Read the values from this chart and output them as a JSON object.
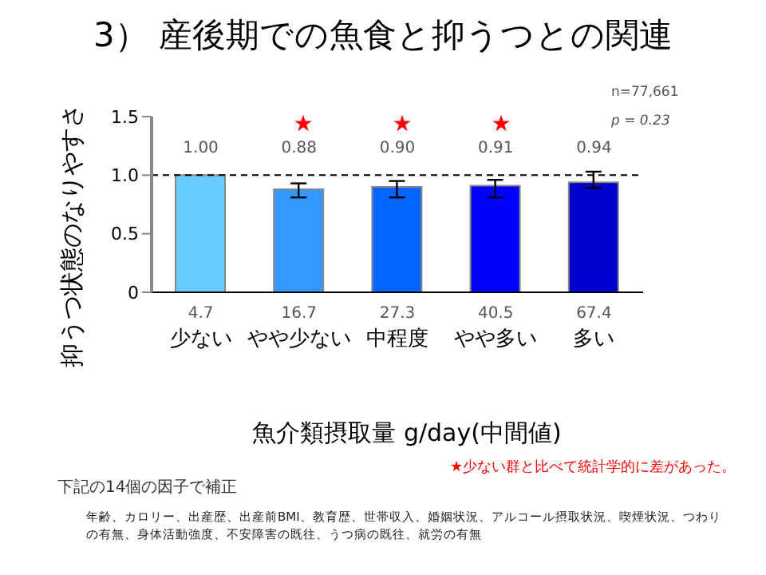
{
  "chart_data": {
    "type": "bar",
    "title": "3） 産後期での魚食と抑うつとの関連",
    "categories": [
      "4.7\n少ない",
      "16.7\nやや少ない",
      "27.3\n中程度",
      "40.5\nやや多い",
      "67.4\n多い"
    ],
    "values": [
      1.0,
      0.88,
      0.9,
      0.91,
      0.94
    ],
    "colors": [
      "#66ccff",
      "#3399ff",
      "#0066ff",
      "#0000ff",
      "#0000cc"
    ],
    "errors": [
      null,
      [
        0.81,
        0.93
      ],
      [
        0.81,
        0.95
      ],
      [
        0.81,
        0.96
      ],
      [
        0.89,
        1.03
      ]
    ],
    "value_labels": [
      "1.00",
      "0.88",
      "0.90",
      "0.91",
      "0.94"
    ],
    "xlabel": "魚介類摂取量 g/day(中間値)",
    "ylabel": "抑うつ状態のなりやすさ",
    "ylim": [
      0,
      1.5
    ],
    "yticks": [
      0,
      {
        "value": 0.5,
        "label": "0.5"
      },
      {
        "value": 1,
        "label": "1.0"
      },
      {
        "value": 1.5,
        "label": "1.5"
      }
    ],
    "ref_lines": [
      {
        "axis": "y",
        "value": 1,
        "line_style": "dashed",
        "color": "#000000"
      }
    ],
    "grid": false,
    "legend": false,
    "annotations": [
      "★",
      "★",
      "★",
      "n=77,661",
      "p = 0.23",
      "★少ない群と比べて統計学的に差があった。",
      "下記の14個の因子で補正",
      "年齢、カロリー、出産歴、出産前BMI、教育歴、世帯収入、婚姻状況、アルコール摂取状況、喫煙状況、つわりの有無、身体活動強度、不安障害の既往、うつ病の既往、就労の有無"
    ]
  }
}
